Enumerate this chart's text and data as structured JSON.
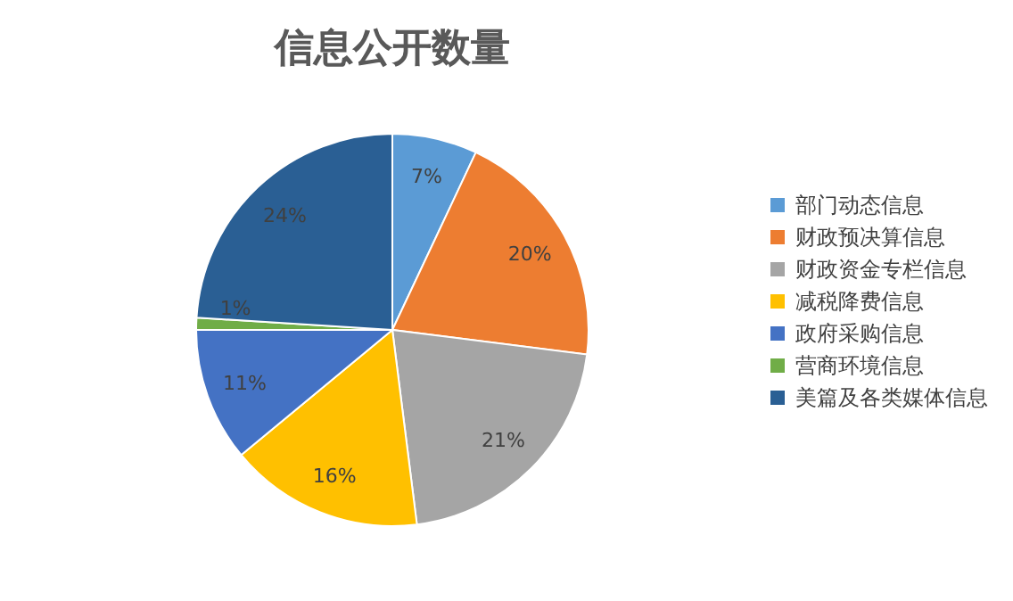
{
  "chart_data": {
    "type": "pie",
    "title": "信息公开数量",
    "categories": [
      "部门动态信息",
      "财政预决算信息",
      "财政资金专栏信息",
      "减税降费信息",
      "政府采购信息",
      "营商环境信息",
      "美篇及各类媒体信息"
    ],
    "values": [
      7,
      20,
      21,
      16,
      11,
      1,
      24
    ],
    "colors": [
      "#5b9bd5",
      "#ed7d31",
      "#a5a5a5",
      "#ffc000",
      "#4472c4",
      "#70ad47",
      "#2a5f94"
    ],
    "value_labels": [
      "7%",
      "20%",
      "21%",
      "16%",
      "11%",
      "1%",
      "24%"
    ],
    "legend": "right"
  }
}
